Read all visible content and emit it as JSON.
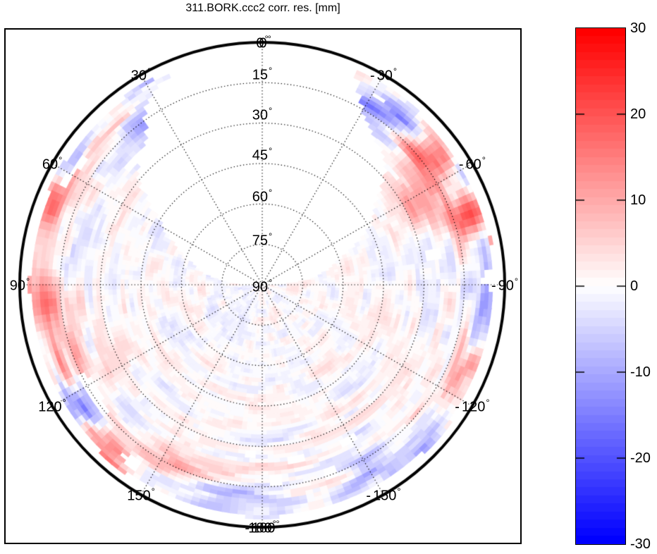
{
  "title": "311.BORK.ccc2 corr. res. [mm]",
  "chart_data": {
    "type": "heatmap",
    "subtype": "polar-skyplot",
    "title": "311.BORK.ccc2 corr. res. [mm]",
    "units": "mm",
    "value_range": [
      -30,
      30
    ],
    "grid": {
      "ring_step_deg": 15,
      "spoke_step_deg": 30,
      "line_style": "dotted"
    },
    "elevation_rings": [
      {
        "el": 15,
        "label": "15°"
      },
      {
        "el": 30,
        "label": "30°"
      },
      {
        "el": 45,
        "label": "45°"
      },
      {
        "el": 60,
        "label": "60°"
      },
      {
        "el": 75,
        "label": "75°"
      },
      {
        "el": 90,
        "label": "90°"
      }
    ],
    "azimuth_ticks": [
      {
        "az": 0,
        "label": "0°"
      },
      {
        "az": -0.7,
        "label": "0°"
      },
      {
        "az": 30,
        "label": "30°"
      },
      {
        "az": 60,
        "label": "60°"
      },
      {
        "az": 90,
        "label": "90°"
      },
      {
        "az": 120,
        "label": "120°"
      },
      {
        "az": 150,
        "label": "150°"
      },
      {
        "az": 180,
        "label": "180°"
      },
      {
        "az": -180,
        "label": "-180°"
      },
      {
        "az": -150,
        "label": "-150°"
      },
      {
        "az": -120,
        "label": "-120°"
      },
      {
        "az": -90,
        "label": "-90°"
      },
      {
        "az": -60,
        "label": "-60°"
      },
      {
        "az": -30,
        "label": "-30°"
      }
    ],
    "colorbar": {
      "ticks": [
        30,
        20,
        10,
        0,
        -10,
        -20,
        -30
      ],
      "tick_labels": [
        "30",
        "20",
        "10",
        "0",
        "-10",
        "-20",
        "-30"
      ],
      "inner_tick_values": [
        20,
        10,
        0,
        -10,
        -20
      ],
      "levels": 64,
      "color_positive": "#ff0000",
      "color_zero": "#ffffff",
      "color_negative": "#0000ff"
    },
    "data_coverage": {
      "north_hole_half_width_deg_at_horizon": 22,
      "north_hole_growth_per_elevation_deg": 0.85,
      "north_hole_edge_wobble_deg": 10,
      "min_elevation_deg": 2.5,
      "horizon_gap_wobble_deg": 3,
      "dropout_threshold": 0.87
    },
    "residual_field": {
      "description": "speckled correction residuals in mm, pale near zero, larger amplitude at low elevation",
      "noise_seed": 11,
      "base_amplitude_mm": 3,
      "horizon_extra_amplitude_mm": 7.5,
      "amplitude_elevation_scale_deg": 16,
      "features": [
        {
          "az": -53,
          "el": 14,
          "mm": 20,
          "saz": 7,
          "sel": 5
        },
        {
          "az": -71,
          "el": 9,
          "mm": 26,
          "saz": 4,
          "sel": 6
        },
        {
          "az": -36,
          "el": 13,
          "mm": -13,
          "saz": 8,
          "sel": 5
        },
        {
          "az": 30,
          "el": 16,
          "mm": -12,
          "saz": 6,
          "sel": 5
        },
        {
          "az": 70,
          "el": 4,
          "mm": 16,
          "saz": 5,
          "sel": 4
        },
        {
          "az": 97,
          "el": 11,
          "mm": 13,
          "saz": 6,
          "sel": 5
        },
        {
          "az": 112,
          "el": 11,
          "mm": 10,
          "saz": 6,
          "sel": 5
        },
        {
          "az": 137,
          "el": 8,
          "mm": 15,
          "saz": 5,
          "sel": 4
        },
        {
          "az": 124,
          "el": 9,
          "mm": -12,
          "saz": 5,
          "sel": 4
        },
        {
          "az": 175,
          "el": 10,
          "mm": -11,
          "saz": 9,
          "sel": 5
        },
        {
          "az": -135,
          "el": 4,
          "mm": -13,
          "saz": 6,
          "sel": 4
        },
        {
          "az": -93,
          "el": 5,
          "mm": -13,
          "saz": 7,
          "sel": 5
        },
        {
          "az": -117,
          "el": 11,
          "mm": 8,
          "saz": 8,
          "sel": 6
        },
        {
          "az": -150,
          "el": 8,
          "mm": -10,
          "saz": 6,
          "sel": 4
        },
        {
          "az": 155,
          "el": 15,
          "mm": 9,
          "saz": 7,
          "sel": 5
        },
        {
          "az": -62,
          "el": 25,
          "mm": 12,
          "saz": 6,
          "sel": 5
        }
      ]
    }
  }
}
